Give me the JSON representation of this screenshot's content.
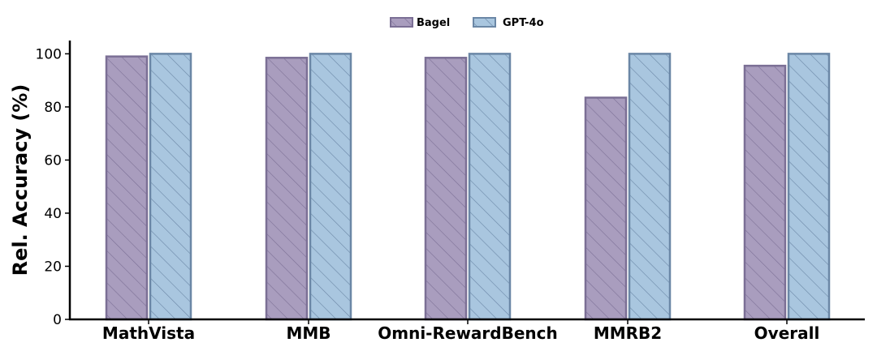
{
  "chart_data": {
    "type": "bar",
    "title": "",
    "xlabel": "",
    "ylabel": "Rel. Accuracy (%)",
    "ylim": [
      0,
      105
    ],
    "yticks": [
      0,
      20,
      40,
      60,
      80,
      100
    ],
    "grid": false,
    "legend_position": "top-center",
    "categories": [
      "MathVista",
      "MMB",
      "Omni-RewardBench",
      "MMRB2",
      "Overall"
    ],
    "series": [
      {
        "name": "Bagel",
        "values": [
          99.0,
          98.5,
          98.5,
          83.5,
          95.5
        ],
        "color": "#a99dbe",
        "edge_color": "#7b6f95",
        "hatch": "diagonal"
      },
      {
        "name": "GPT-4o",
        "values": [
          100,
          100,
          100,
          100,
          100
        ],
        "color": "#a9c6df",
        "edge_color": "#6b87a6",
        "hatch": "diagonal"
      }
    ]
  }
}
